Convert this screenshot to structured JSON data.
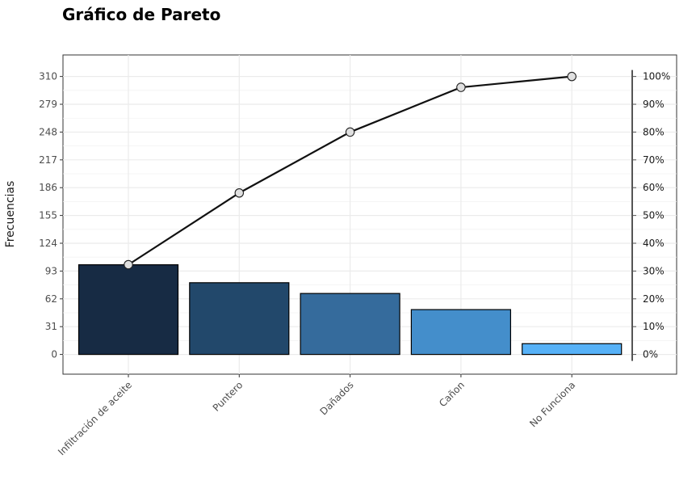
{
  "chart_data": {
    "type": "bar",
    "title": "Gráfico de Pareto",
    "ylabel": "Frecuencias",
    "xlabel": "",
    "categories": [
      "Infiltración de aceite",
      "Puntero",
      "Dañados",
      "Cañon",
      "No Funciona"
    ],
    "values": [
      100,
      80,
      68,
      50,
      12
    ],
    "cumulative_percent": [
      32.3,
      58.1,
      80.0,
      96.1,
      100.0
    ],
    "ylim": [
      -22,
      334
    ],
    "yticks": [
      0,
      31,
      62,
      93,
      124,
      155,
      186,
      217,
      248,
      279,
      310
    ],
    "y2ticks": [
      "0%",
      "10%",
      "20%",
      "30%",
      "40%",
      "50%",
      "60%",
      "70%",
      "80%",
      "90%",
      "100%"
    ],
    "bar_colors": [
      "#172b44",
      "#22486b",
      "#356b9c",
      "#448ecb",
      "#56b1f7"
    ],
    "line_color": "#111111",
    "point_fill": "#e0e0e0",
    "grid": true
  }
}
